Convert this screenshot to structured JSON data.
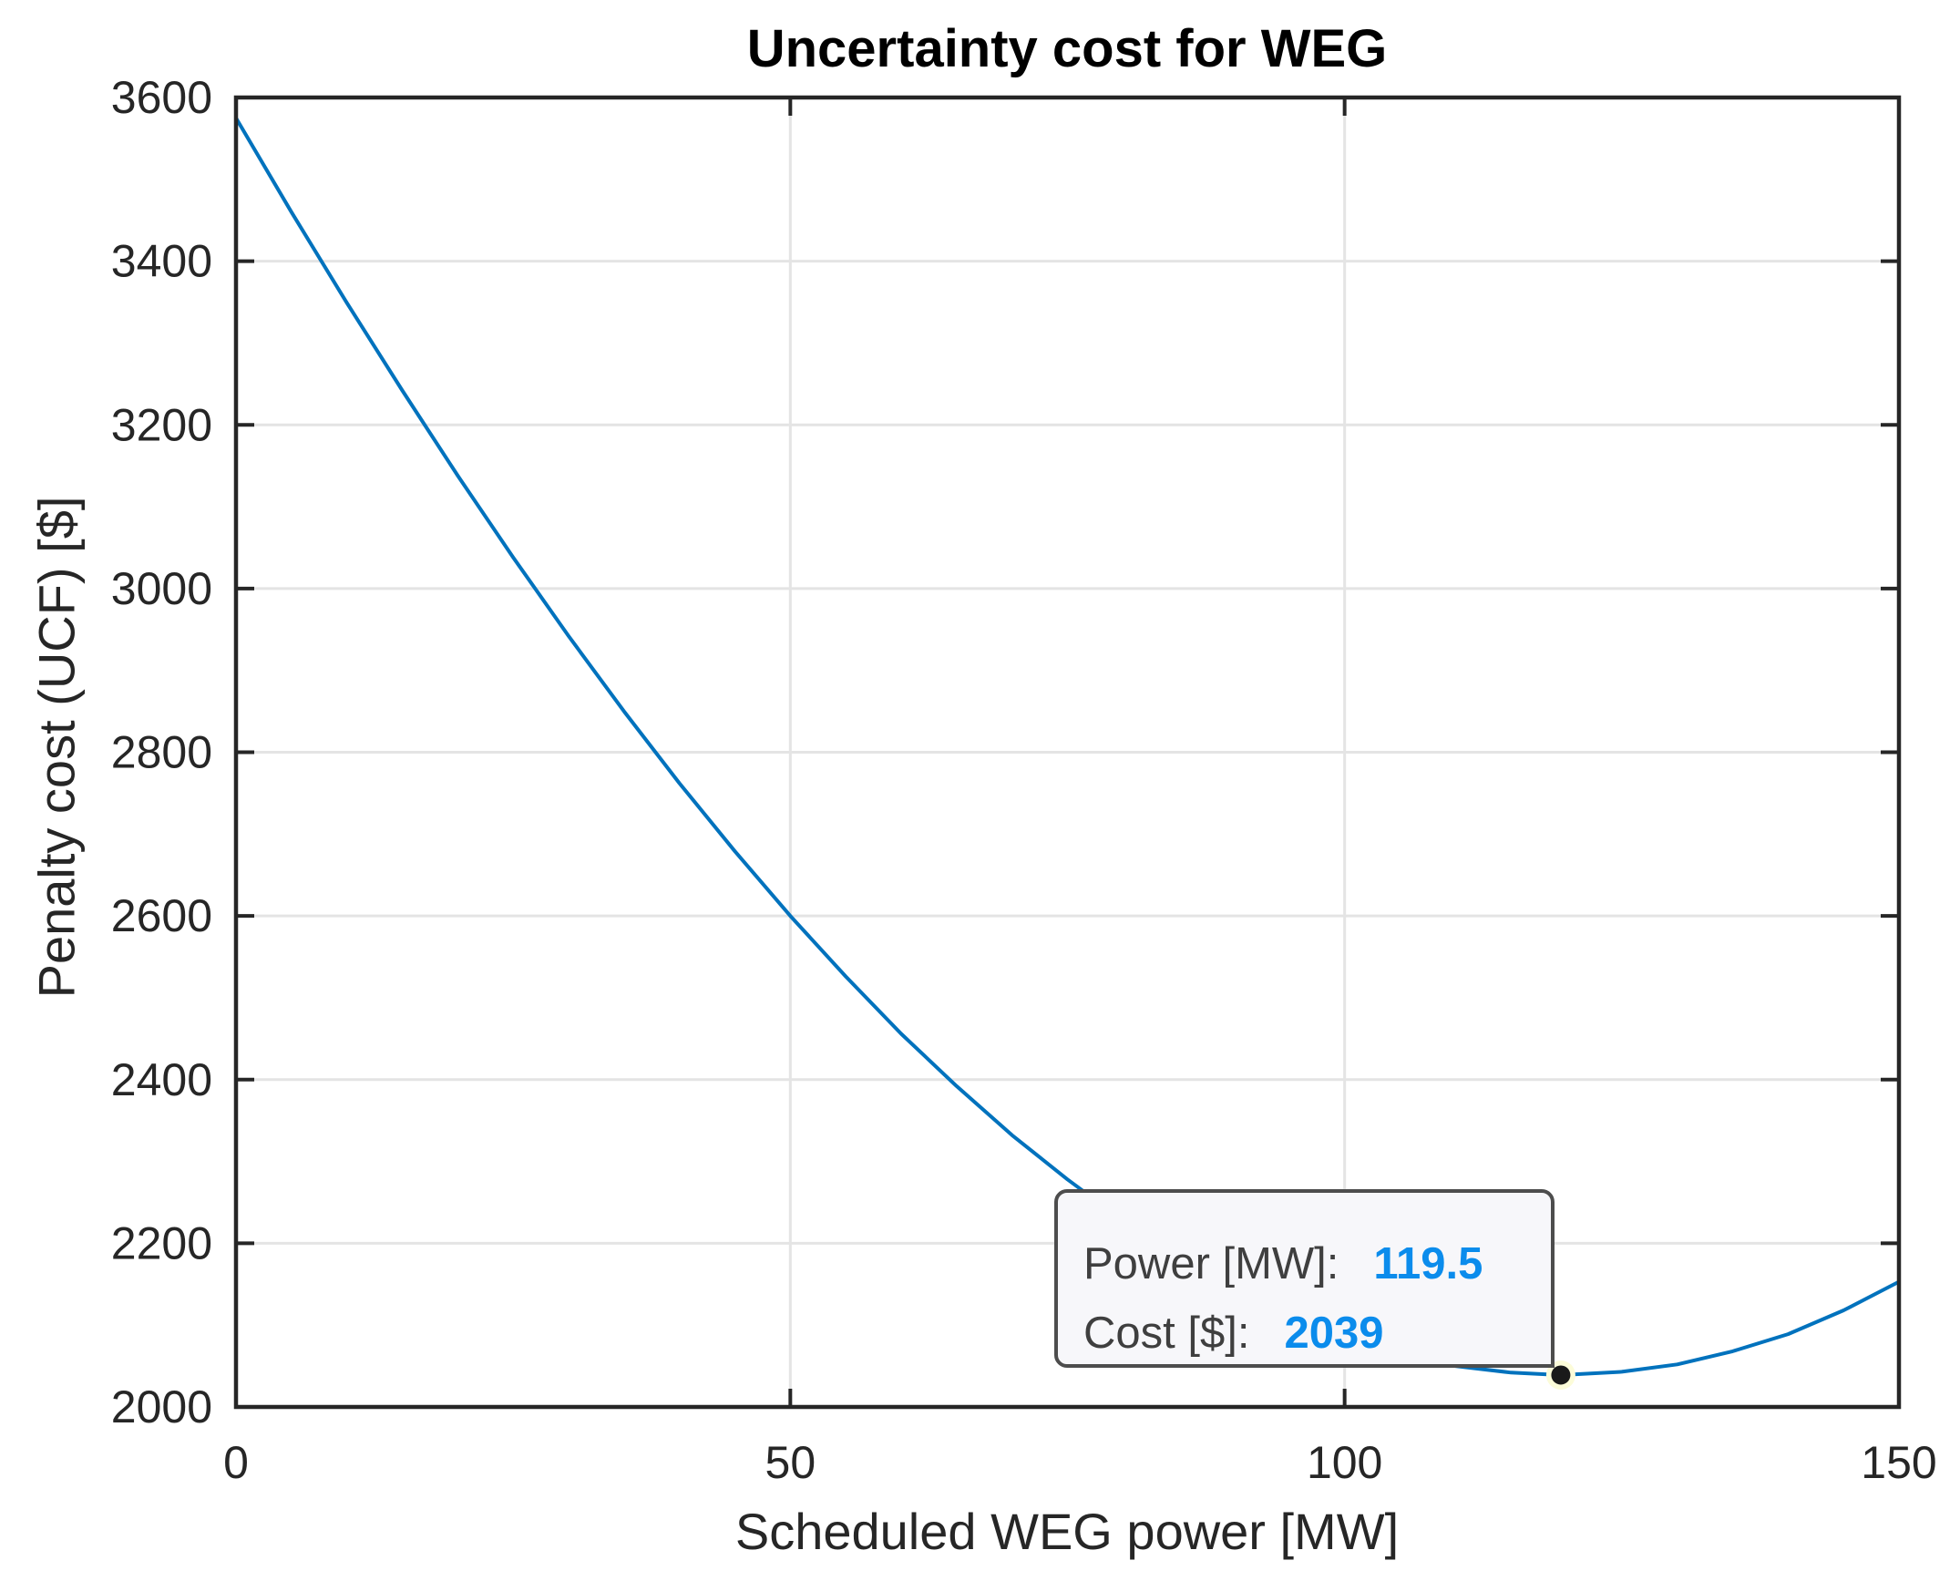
{
  "chart_data": {
    "type": "line",
    "title": "Uncertainty cost for WEG",
    "xlabel": "Scheduled WEG power [MW]",
    "ylabel": "Penalty cost (UCF) [$]",
    "xlim": [
      0,
      150
    ],
    "ylim": [
      2000,
      3600
    ],
    "xticks": [
      0,
      50,
      100,
      150
    ],
    "yticks": [
      2000,
      2200,
      2400,
      2600,
      2800,
      3000,
      3200,
      3400,
      3600
    ],
    "grid": true,
    "legend": "none",
    "series": [
      {
        "name": "UCF curve",
        "x": [
          0,
          5,
          10,
          15,
          20,
          25,
          30,
          35,
          40,
          45,
          50,
          55,
          60,
          65,
          70,
          75,
          80,
          85,
          90,
          95,
          100,
          105,
          110,
          115,
          119.5,
          125,
          130,
          135,
          140,
          145,
          150
        ],
        "y": [
          3575,
          3460,
          3349,
          3242,
          3138,
          3038,
          2942,
          2850,
          2762,
          2679,
          2600,
          2526,
          2456,
          2392,
          2332,
          2278,
          2228,
          2184,
          2146,
          2113,
          2086,
          2065,
          2050,
          2042,
          2039,
          2043,
          2052,
          2068,
          2089,
          2118,
          2153
        ]
      }
    ],
    "datatip": {
      "x": 119.5,
      "y": 2039,
      "rows": [
        {
          "label": "Power [MW]:",
          "value": "119.5"
        },
        {
          "label": "Cost [$]:",
          "value": "2039"
        }
      ]
    },
    "colors": {
      "line": "#0072BD",
      "grid": "#E4E4E4",
      "axis": "#262626",
      "tick_label": "#262626",
      "marker": "#1A1A1A",
      "marker_halo": "#FCFCD9",
      "tooltip_bg": "#F7F7FA",
      "tooltip_border": "#4D4D4D",
      "tooltip_label": "#3F3F3F",
      "tooltip_value": "#0B8CEC"
    }
  }
}
